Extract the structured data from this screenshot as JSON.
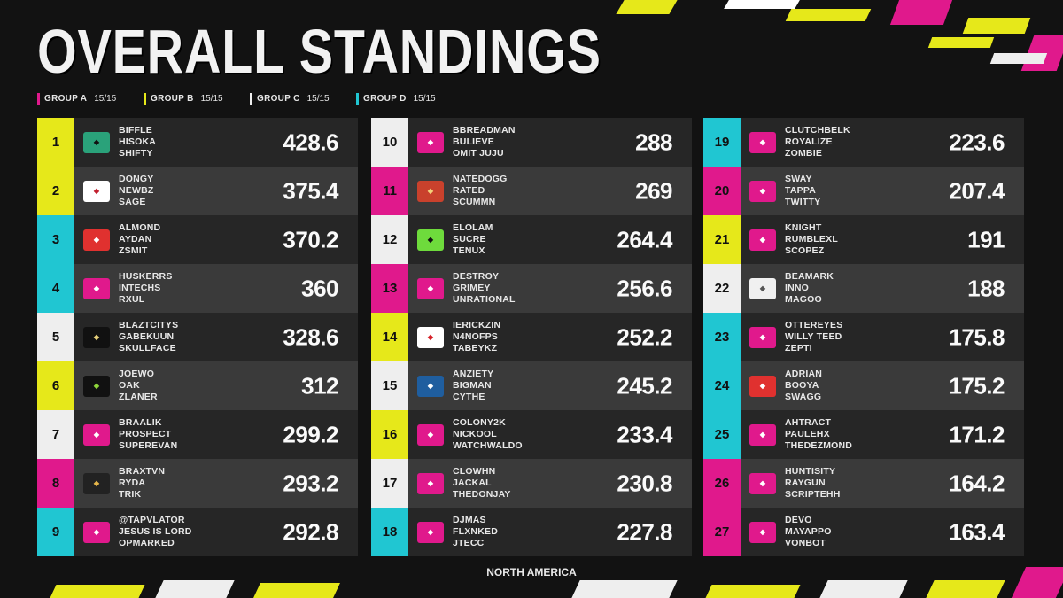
{
  "title": "OVERALL STANDINGS",
  "groups": [
    {
      "label": "GROUP A",
      "count": "15/15",
      "color": "#e0198c"
    },
    {
      "label": "GROUP B",
      "count": "15/15",
      "color": "#e6e81a"
    },
    {
      "label": "GROUP C",
      "count": "15/15",
      "color": "#eeeeee"
    },
    {
      "label": "GROUP D",
      "count": "15/15",
      "color": "#20c6d2"
    }
  ],
  "footer": "NORTH AMERICA",
  "colors": {
    "pink": "#e0198c",
    "yellow": "#e6e81a",
    "white": "#eeeeee",
    "cyan": "#20c6d2"
  },
  "columns": [
    [
      {
        "rank": "1",
        "p1": "BIFFLE",
        "p2": "HISOKA",
        "p3": "SHIFTY",
        "score": "428.6",
        "color": "#e6e81a",
        "logo": "team-spirit-logo"
      },
      {
        "rank": "2",
        "p1": "DONGY",
        "p2": "NEWBZ",
        "p3": "SAGE",
        "score": "375.4",
        "color": "#e6e81a",
        "logo": "virtus-pro-logo"
      },
      {
        "rank": "3",
        "p1": "ALMOND",
        "p2": "AYDAN",
        "p3": "ZSMIT",
        "score": "370.2",
        "color": "#20c6d2",
        "logo": "fury-logo"
      },
      {
        "rank": "4",
        "p1": "HUSKERRS",
        "p2": "INTECHS",
        "p3": "RXUL",
        "score": "360",
        "color": "#20c6d2",
        "logo": "rebirth-logo"
      },
      {
        "rank": "5",
        "p1": "BLAZTCITYS",
        "p2": "GABEKUUN",
        "p3": "SKULLFACE",
        "score": "328.6",
        "color": "#eeeeee",
        "logo": "100-thieves-logo"
      },
      {
        "rank": "6",
        "p1": "JOEWO",
        "p2": "OAK",
        "p3": "ZLANER",
        "score": "312",
        "color": "#e6e81a",
        "logo": "optic-logo"
      },
      {
        "rank": "7",
        "p1": "BRAALIK",
        "p2": "PROSPECT",
        "p3": "SUPEREVAN",
        "score": "299.2",
        "color": "#eeeeee",
        "logo": "rebirth-logo"
      },
      {
        "rank": "8",
        "p1": "BRAXTVN",
        "p2": "RYDA",
        "p3": "TRIK",
        "score": "293.2",
        "color": "#e0198c",
        "logo": "gorilla-logo"
      },
      {
        "rank": "9",
        "p1": "@TAPVLATOR",
        "p2": "JESUS IS LORD",
        "p3": "OPMARKED",
        "score": "292.8",
        "color": "#20c6d2",
        "logo": "rebirth-logo"
      }
    ],
    [
      {
        "rank": "10",
        "p1": "BBREADMAN",
        "p2": "BULIEVE",
        "p3": "OMIT JUJU",
        "score": "288",
        "color": "#eeeeee",
        "logo": "rebirth-logo"
      },
      {
        "rank": "11",
        "p1": "NATEDOGG",
        "p2": "RATED",
        "p3": "SCUMMN",
        "score": "269",
        "color": "#e0198c",
        "logo": "crest-logo"
      },
      {
        "rank": "12",
        "p1": "ELOLAM",
        "p2": "SUCRE",
        "p3": "TENUX",
        "score": "264.4",
        "color": "#eeeeee",
        "logo": "oxygen-logo"
      },
      {
        "rank": "13",
        "p1": "DESTROY",
        "p2": "GRIMEY",
        "p3": "UNRATIONAL",
        "score": "256.6",
        "color": "#e0198c",
        "logo": "rebirth-logo"
      },
      {
        "rank": "14",
        "p1": "IERICKZIN",
        "p2": "N4NOFPS",
        "p3": "TABEYKZ",
        "score": "252.2",
        "color": "#e6e81a",
        "logo": "vivo-logo"
      },
      {
        "rank": "15",
        "p1": "ANZIETY",
        "p2": "BIGMAN",
        "p3": "CYTHE",
        "score": "245.2",
        "color": "#eeeeee",
        "logo": "swirl-logo"
      },
      {
        "rank": "16",
        "p1": "COLONY2K",
        "p2": "NICKOOL",
        "p3": "WATCHWALDO",
        "score": "233.4",
        "color": "#e6e81a",
        "logo": "rebirth-logo"
      },
      {
        "rank": "17",
        "p1": "CLOWHN",
        "p2": "JACKAL",
        "p3": "THEDONJAY",
        "score": "230.8",
        "color": "#eeeeee",
        "logo": "rebirth-logo"
      },
      {
        "rank": "18",
        "p1": "DJMAS",
        "p2": "FLXNKED",
        "p3": "JTECC",
        "score": "227.8",
        "color": "#20c6d2",
        "logo": "rebirth-logo"
      }
    ],
    [
      {
        "rank": "19",
        "p1": "CLUTCHBELK",
        "p2": "ROYALIZE",
        "p3": "ZOMBIE",
        "score": "223.6",
        "color": "#20c6d2",
        "logo": "rebirth-logo"
      },
      {
        "rank": "20",
        "p1": "SWAY",
        "p2": "TAPPA",
        "p3": "TWITTY",
        "score": "207.4",
        "color": "#e0198c",
        "logo": "rebirth-logo"
      },
      {
        "rank": "21",
        "p1": "KNIGHT",
        "p2": "RUMBLEXL",
        "p3": "SCOPEZ",
        "score": "191",
        "color": "#e6e81a",
        "logo": "rebirth-logo"
      },
      {
        "rank": "22",
        "p1": "BEAMARK",
        "p2": "INNO",
        "p3": "MAGOO",
        "score": "188",
        "color": "#eeeeee",
        "logo": "lotus-logo"
      },
      {
        "rank": "23",
        "p1": "OTTEREYES",
        "p2": "WILLY TEED",
        "p3": "ZEPTI",
        "score": "175.8",
        "color": "#20c6d2",
        "logo": "rebirth-logo"
      },
      {
        "rank": "24",
        "p1": "ADRIAN",
        "p2": "BOOYA",
        "p3": "SWAGG",
        "score": "175.2",
        "color": "#20c6d2",
        "logo": "faze-logo"
      },
      {
        "rank": "25",
        "p1": "AHTRACT",
        "p2": "PAULEHX",
        "p3": "THEDEZMOND",
        "score": "171.2",
        "color": "#20c6d2",
        "logo": "rebirth-logo"
      },
      {
        "rank": "26",
        "p1": "HUNTISITY",
        "p2": "RAYGUN",
        "p3": "SCRIPTEHH",
        "score": "164.2",
        "color": "#e0198c",
        "logo": "rebirth-logo"
      },
      {
        "rank": "27",
        "p1": "DEVO",
        "p2": "MAYAPPO",
        "p3": "VONBOT",
        "score": "163.4",
        "color": "#e0198c",
        "logo": "rebirth-logo"
      }
    ]
  ]
}
